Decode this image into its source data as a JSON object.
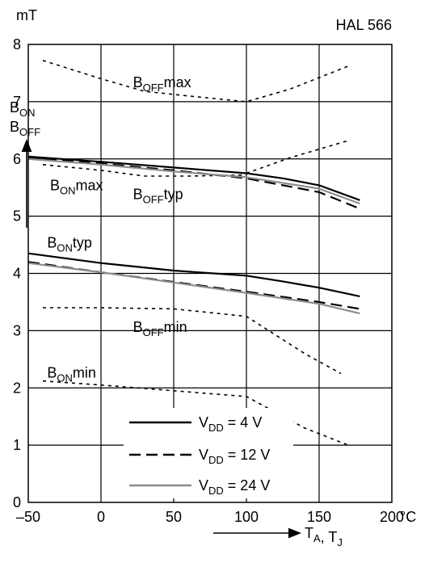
{
  "chart_data": {
    "type": "line",
    "title": "HAL 566",
    "y_unit": "mT",
    "x_unit": "°C",
    "ylabel": {
      "lines": [
        {
          "main": "B",
          "sub": "ON"
        },
        {
          "main": "B",
          "sub": "OFF"
        }
      ]
    },
    "xlabel": {
      "parts": [
        {
          "main": "T",
          "sub": "A"
        },
        {
          "main": ", T",
          "sub": "J"
        }
      ]
    },
    "xlim": [
      -50,
      200
    ],
    "ylim": [
      0,
      8
    ],
    "x_ticks": [
      -50,
      0,
      50,
      100,
      150,
      200
    ],
    "x_tick_labels": [
      "–50",
      "0",
      "50",
      "100",
      "150",
      "200"
    ],
    "y_ticks": [
      0,
      1,
      2,
      3,
      4,
      5,
      6,
      7,
      8
    ],
    "y_tick_labels": [
      "0",
      "1",
      "2",
      "3",
      "4",
      "5",
      "6",
      "7",
      "8"
    ],
    "grid": true,
    "colors": {
      "vdd4": "#000000",
      "vdd12": "#000000",
      "vdd24": "#8c8c8c"
    },
    "series": [
      {
        "curve": "B_OFF max",
        "style": "dotted",
        "color": "#000000",
        "x": [
          -40,
          0,
          30,
          60,
          100,
          130,
          170
        ],
        "y": [
          7.72,
          7.4,
          7.18,
          7.1,
          7.0,
          7.22,
          7.62
        ]
      },
      {
        "curve": "B_ON max (upper dotted)",
        "style": "dotted",
        "color": "#000000",
        "x": [
          100,
          130,
          170
        ],
        "y": [
          5.75,
          6.02,
          6.32
        ]
      },
      {
        "curve": "B_ON max (lower dotted)",
        "style": "dotted",
        "color": "#000000",
        "x": [
          -40,
          0,
          30,
          60,
          100
        ],
        "y": [
          5.9,
          5.8,
          5.7,
          5.7,
          5.72
        ]
      },
      {
        "name": "V_DD = 4 V",
        "curve": "B_ON typ",
        "style": "solid",
        "color": "#000000",
        "x": [
          -50,
          0,
          50,
          100,
          125,
          150,
          178
        ],
        "y": [
          4.35,
          4.18,
          4.05,
          3.96,
          3.86,
          3.75,
          3.6
        ]
      },
      {
        "name": "V_DD = 12 V",
        "curve": "B_ON typ",
        "style": "dashed",
        "color": "#000000",
        "x": [
          -50,
          0,
          50,
          100,
          150,
          178
        ],
        "y": [
          4.2,
          4.02,
          3.85,
          3.68,
          3.5,
          3.38
        ]
      },
      {
        "name": "V_DD = 24 V",
        "curve": "B_ON typ",
        "style": "solid",
        "color": "#8c8c8c",
        "x": [
          -50,
          0,
          50,
          100,
          150,
          178
        ],
        "y": [
          4.18,
          4.02,
          3.84,
          3.66,
          3.47,
          3.3
        ]
      },
      {
        "name": "V_DD = 4 V",
        "curve": "B_OFF typ",
        "style": "solid",
        "color": "#000000",
        "x": [
          -50,
          0,
          50,
          100,
          125,
          150,
          178
        ],
        "y": [
          6.04,
          5.95,
          5.85,
          5.75,
          5.66,
          5.54,
          5.28
        ]
      },
      {
        "name": "V_DD = 12 V",
        "curve": "B_OFF typ",
        "style": "dashed",
        "color": "#000000",
        "x": [
          -50,
          0,
          50,
          100,
          150,
          178
        ],
        "y": [
          6.02,
          5.92,
          5.8,
          5.66,
          5.42,
          5.13
        ]
      },
      {
        "name": "V_DD = 24 V",
        "curve": "B_OFF typ",
        "style": "solid",
        "color": "#8c8c8c",
        "x": [
          -50,
          0,
          50,
          100,
          150,
          178
        ],
        "y": [
          6.0,
          5.9,
          5.78,
          5.68,
          5.48,
          5.22
        ]
      },
      {
        "curve": "B_OFF min",
        "style": "dotted",
        "color": "#000000",
        "x": [
          -40,
          0,
          50,
          100,
          140,
          165
        ],
        "y": [
          3.4,
          3.4,
          3.38,
          3.25,
          2.6,
          2.25
        ]
      },
      {
        "curve": "B_ON min",
        "style": "dotted",
        "color": "#000000",
        "x": [
          -40,
          0,
          50,
          100,
          140,
          170
        ],
        "y": [
          2.12,
          2.05,
          1.95,
          1.85,
          1.3,
          1.0
        ]
      }
    ],
    "annotations": [
      {
        "main": "B",
        "sub": "OFF",
        "rest": "max",
        "x": 22,
        "y": 7.25
      },
      {
        "main": "B",
        "sub": "ON",
        "rest": "max",
        "x": -35,
        "y": 5.45
      },
      {
        "main": "B",
        "sub": "OFF",
        "rest": "typ",
        "x": 22,
        "y": 5.3
      },
      {
        "main": "B",
        "sub": "ON",
        "rest": "typ",
        "x": -37,
        "y": 4.45
      },
      {
        "main": "B",
        "sub": "OFF",
        "rest": "min",
        "x": 22,
        "y": 2.98
      },
      {
        "main": "B",
        "sub": "ON",
        "rest": "min",
        "x": -37,
        "y": 2.18
      }
    ],
    "legend": {
      "placement": "bottom-center",
      "entries": [
        {
          "main": "V",
          "sub": "DD",
          "rest": " = 4 V",
          "style": "solid",
          "color": "#000000"
        },
        {
          "main": "V",
          "sub": "DD",
          "rest": " = 12 V",
          "style": "dashed",
          "color": "#000000"
        },
        {
          "main": "V",
          "sub": "DD",
          "rest": " = 24 V",
          "style": "solid",
          "color": "#8c8c8c"
        }
      ]
    }
  }
}
